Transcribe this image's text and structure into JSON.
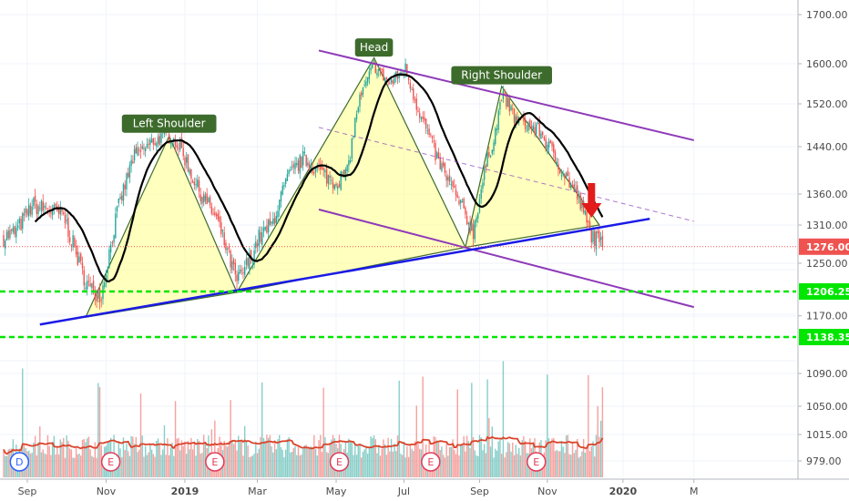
{
  "chart_data": {
    "type": "candlestick",
    "price_axis": {
      "ticks": [
        "1700.00",
        "1600.00",
        "1520.00",
        "1440.00",
        "1360.00",
        "1310.00",
        "1250.00",
        "1170.00"
      ],
      "tick_values": [
        1700,
        1600,
        1520,
        1440,
        1360,
        1310,
        1250,
        1170
      ],
      "labels_above": [
        {
          "text": "1276.00",
          "value": 1276,
          "color": "#ef5350"
        },
        {
          "text": "1206.25",
          "value": 1206.25,
          "color": "#00e600"
        },
        {
          "text": "1138.35",
          "value": 1138.35,
          "color": "#00e600"
        }
      ]
    },
    "volume_axis": {
      "ticks": [
        "1090.00",
        "1050.00",
        "1015.00",
        "979.00"
      ],
      "tick_values": [
        1090,
        1050,
        1015,
        979
      ]
    },
    "time_axis": {
      "labels": [
        "Sep",
        "Nov",
        "2019",
        "Mar",
        "May",
        "Jul",
        "Sep",
        "Nov",
        "2020",
        "M"
      ],
      "label_index": [
        15,
        65,
        115,
        161,
        211,
        254,
        302,
        345,
        393,
        438
      ],
      "bold": [
        false,
        false,
        true,
        false,
        false,
        false,
        false,
        false,
        true,
        false
      ]
    },
    "pattern_labels": [
      {
        "text": "Left Shoulder",
        "index": 105,
        "value": 1483
      },
      {
        "text": "Head",
        "index": 235,
        "value": 1633
      },
      {
        "text": "Right Shoulder",
        "index": 316,
        "value": 1577
      }
    ],
    "events": [
      {
        "text": "D",
        "index": 10,
        "color": "#2962ff"
      },
      {
        "text": "E",
        "index": 68,
        "color": "#e03c5a"
      },
      {
        "text": "E",
        "index": 134,
        "color": "#e03c5a"
      },
      {
        "text": "E",
        "index": 213,
        "color": "#e03c5a"
      },
      {
        "text": "E",
        "index": 271,
        "color": "#e03c5a"
      },
      {
        "text": "E",
        "index": 338,
        "color": "#e03c5a"
      }
    ],
    "neckline": {
      "x": [
        23,
        410
      ],
      "y": [
        1157,
        1320
      ]
    },
    "pattern_triangles": [
      [
        [
          52,
          1168
        ],
        [
          105,
          1460
        ],
        [
          148,
          1205
        ]
      ],
      [
        [
          148,
          1205
        ],
        [
          235,
          1612
        ],
        [
          293,
          1275
        ]
      ],
      [
        [
          293,
          1275
        ],
        [
          316,
          1555
        ],
        [
          378,
          1310
        ]
      ]
    ],
    "channel_upper": {
      "x": [
        200,
        438
      ],
      "y": [
        1627,
        1452
      ]
    },
    "channel_lower": {
      "x": [
        200,
        438
      ],
      "y": [
        1335,
        1183
      ]
    },
    "midline": {
      "x": [
        200,
        438
      ],
      "y": [
        1476,
        1316
      ]
    },
    "support_1": 1206.25,
    "support_2": 1138.35,
    "last_price": 1276,
    "colors": {
      "up": "#26a69a",
      "down": "#ef5350",
      "moving_average": "#000000",
      "neckline": "#1a1ae6",
      "channel": "#8e3ab8",
      "triangle_fill": "#ffff88",
      "label_bg": "#3d6b2c",
      "support": "#00e600",
      "arrow": "#e31b1b",
      "volume_ma": "#d9442b"
    }
  }
}
